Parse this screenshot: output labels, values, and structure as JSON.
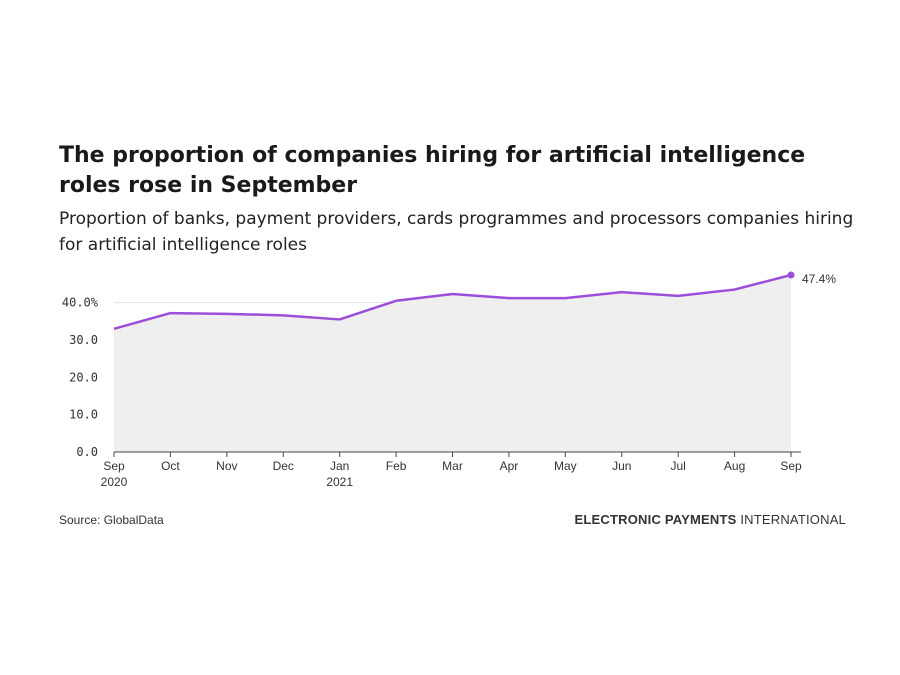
{
  "header": {
    "title": "The proportion of companies hiring for artificial intelligence roles rose in September",
    "subtitle": "Proportion of banks, payment providers, cards programmes and processors companies hiring for artificial intelligence roles"
  },
  "footer": {
    "source": "Source: GlobalData",
    "brand_bold": "ELECTRONIC PAYMENTS",
    "brand_light": " INTERNATIONAL"
  },
  "colors": {
    "line": "#9b4fd9",
    "area": "#efefef",
    "grid": "#e3e3e3",
    "axis": "#444444"
  },
  "chart_data": {
    "type": "area",
    "categories": [
      "Sep 2020",
      "Oct",
      "Nov",
      "Dec",
      "Jan 2021",
      "Feb",
      "Mar",
      "Apr",
      "May",
      "Jun",
      "Jul",
      "Aug",
      "Sep"
    ],
    "x_labels": [
      [
        "Sep",
        "2020"
      ],
      [
        "Oct"
      ],
      [
        "Nov"
      ],
      [
        "Dec"
      ],
      [
        "Jan",
        "2021"
      ],
      [
        "Feb"
      ],
      [
        "Mar"
      ],
      [
        "Apr"
      ],
      [
        "May"
      ],
      [
        "Jun"
      ],
      [
        "Jul"
      ],
      [
        "Aug"
      ],
      [
        "Sep"
      ]
    ],
    "series": [
      {
        "values": [
          33.0,
          37.2,
          37.0,
          36.6,
          35.5,
          40.5,
          42.3,
          41.2,
          41.2,
          42.8,
          41.8,
          43.5,
          47.4
        ]
      }
    ],
    "y_ticks": [
      0,
      10,
      20,
      30,
      40
    ],
    "y_tick_labels": [
      "0.0",
      "10.0",
      "20.0",
      "30.0",
      "40.0%"
    ],
    "ylim": [
      0,
      47.4
    ],
    "end_label": "47.4%",
    "grid": true
  }
}
